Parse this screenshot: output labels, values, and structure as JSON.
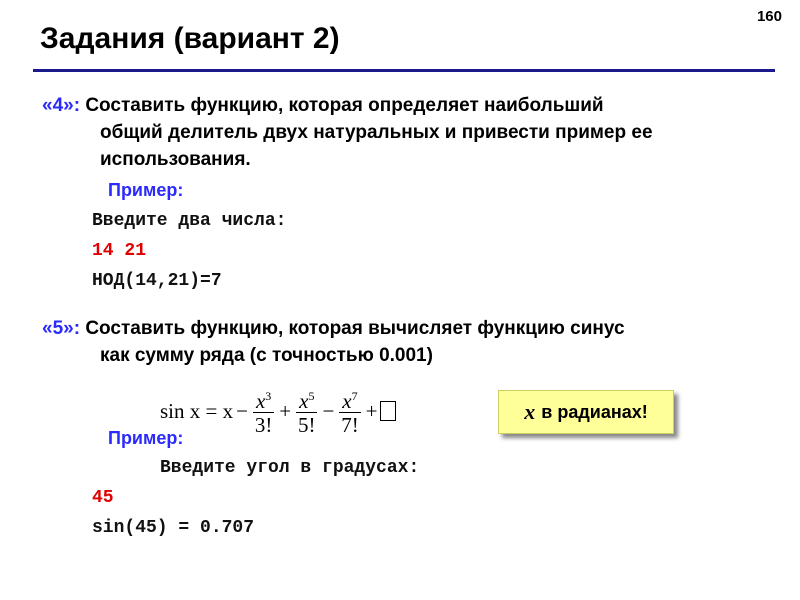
{
  "page_number": "160",
  "title": "Задания (вариант 2)",
  "colors": {
    "rule": "#1a1a8c",
    "label": "#2a2aff",
    "input": "#e00000",
    "callout_bg": "#ffff99"
  },
  "task4": {
    "label": "«4»:",
    "lines": [
      "Составить функцию, которая определяет наибольший",
      "общий делитель двух натуральных и привести пример ее",
      "использования."
    ],
    "example_label": "Пример:",
    "code": [
      "Введите два числа:",
      "14 21",
      "НОД(14,21)=7"
    ]
  },
  "task5": {
    "label": "«5»:",
    "lines": [
      "Составить функцию, которая вычисляет функцию синус",
      "как сумму ряда (с точностью 0.001)"
    ],
    "formula": {
      "lhs": "sin x = x",
      "terms": [
        {
          "sign": "−",
          "num": "x",
          "exp": "3",
          "den": "3!"
        },
        {
          "sign": "+",
          "num": "x",
          "exp": "5",
          "den": "5!"
        },
        {
          "sign": "−",
          "num": "x",
          "exp": "7",
          "den": "7!"
        }
      ],
      "tail": "+"
    },
    "callout": {
      "var": "x",
      "text": "в радианах!"
    },
    "example_label": "Пример:",
    "code": [
      "Введите угол в градусах:",
      "45",
      "sin(45) = 0.707"
    ]
  }
}
